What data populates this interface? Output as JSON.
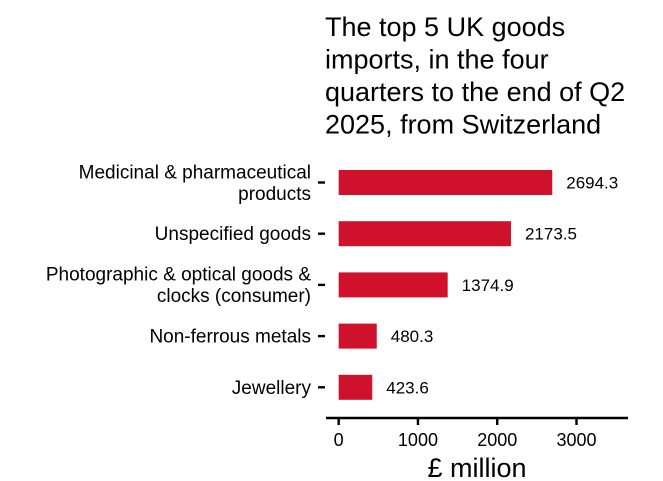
{
  "chart_data": {
    "type": "bar",
    "orientation": "horizontal",
    "title_lines": [
      "The top 5 UK goods",
      "imports, in the four",
      "quarters to the end of Q2",
      "2025, from Switzerland"
    ],
    "categories": [
      [
        "Medicinal & pharmaceutical",
        "products"
      ],
      [
        "Unspecified goods"
      ],
      [
        "Photographic & optical goods &",
        "clocks (consumer)"
      ],
      [
        "Non-ferrous metals"
      ],
      [
        "Jewellery"
      ]
    ],
    "values": [
      2694.3,
      2173.5,
      1374.9,
      480.3,
      423.6
    ],
    "value_labels": [
      "2694.3",
      "2173.5",
      "1374.9",
      "480.3",
      "423.6"
    ],
    "xlabel": "£ million",
    "xticks": [
      0,
      1000,
      2000,
      3000
    ],
    "xtick_labels": [
      "0",
      "1000",
      "2000",
      "3000"
    ],
    "xlim": [
      -160,
      3650
    ],
    "bar_color": "#d0112b",
    "grid": false
  }
}
